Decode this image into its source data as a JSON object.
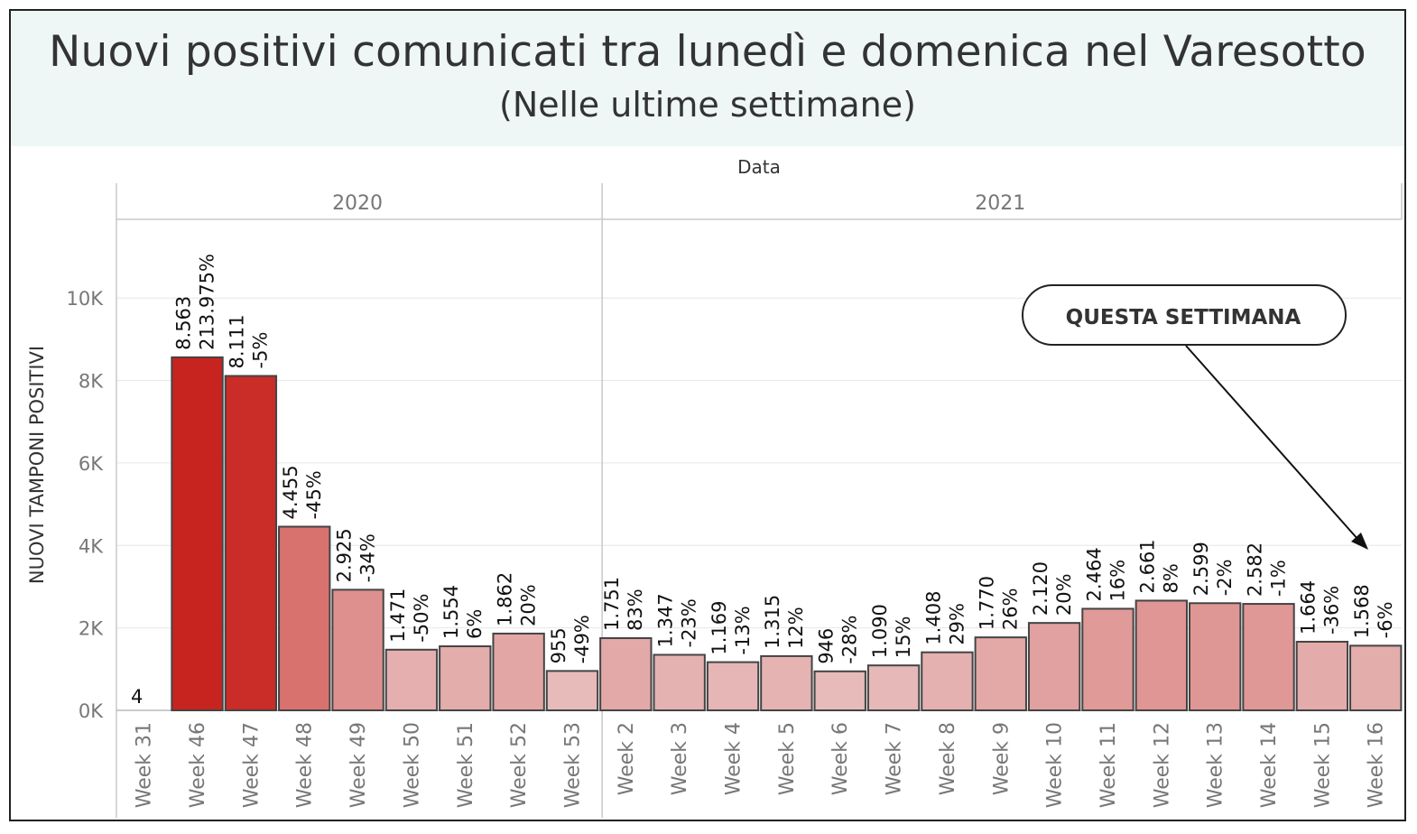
{
  "header": {
    "title": "Nuovi positivi comunicati tra lunedì e domenica nel Varesotto",
    "subtitle": "(Nelle ultime settimane)"
  },
  "colors": {
    "header_bg": "#eef6f6",
    "bar_border": "#444444",
    "bar_dark": "#c8241f",
    "bar_light": "#ebd3d3",
    "grid": "#e6e6e6"
  },
  "chart_data": {
    "type": "bar",
    "top_label": "Data",
    "ylabel": "NUOVI TAMPONI POSITIVI",
    "ylim": [
      0,
      12000
    ],
    "yticks": [
      0,
      2000,
      4000,
      6000,
      8000,
      10000
    ],
    "ytick_labels": [
      "0K",
      "2K",
      "4K",
      "6K",
      "8K",
      "10K"
    ],
    "groups": [
      {
        "year": "2020",
        "categories": [
          "Week 31",
          "Week 46",
          "Week 47",
          "Week 48",
          "Week 49",
          "Week 50",
          "Week 51",
          "Week 52",
          "Week 53"
        ],
        "values": [
          4,
          8563,
          8111,
          4455,
          2925,
          1471,
          1554,
          1862,
          955
        ],
        "value_labels": [
          "4",
          "8.563",
          "8.111",
          "4.455",
          "2.925",
          "1.471",
          "1.554",
          "1.862",
          "955"
        ],
        "pct_labels": [
          "",
          "213.975%",
          "-5%",
          "-45%",
          "-34%",
          "-50%",
          "6%",
          "20%",
          "-49%"
        ]
      },
      {
        "year": "2021",
        "categories": [
          "Week 2",
          "Week 3",
          "Week 4",
          "Week 5",
          "Week 6",
          "Week 7",
          "Week 8",
          "Week 9",
          "Week 10",
          "Week 11",
          "Week 12",
          "Week 13",
          "Week 14",
          "Week 15",
          "Week 16"
        ],
        "values": [
          1751,
          1347,
          1169,
          1315,
          946,
          1090,
          1408,
          1770,
          2120,
          2464,
          2661,
          2599,
          2582,
          1664,
          1568
        ],
        "value_labels": [
          "1.751",
          "1.347",
          "1.169",
          "1.315",
          "946",
          "1.090",
          "1.408",
          "1.770",
          "2.120",
          "2.464",
          "2.661",
          "2.599",
          "2.582",
          "1.664",
          "1.568"
        ],
        "pct_labels": [
          "83%",
          "-23%",
          "-13%",
          "12%",
          "-28%",
          "15%",
          "29%",
          "26%",
          "20%",
          "16%",
          "8%",
          "-2%",
          "-1%",
          "-36%",
          "-6%"
        ]
      }
    ],
    "annotation": {
      "text": "QUESTA SETTIMANA",
      "target": "Week 16"
    },
    "grid": true,
    "legend": "none"
  }
}
